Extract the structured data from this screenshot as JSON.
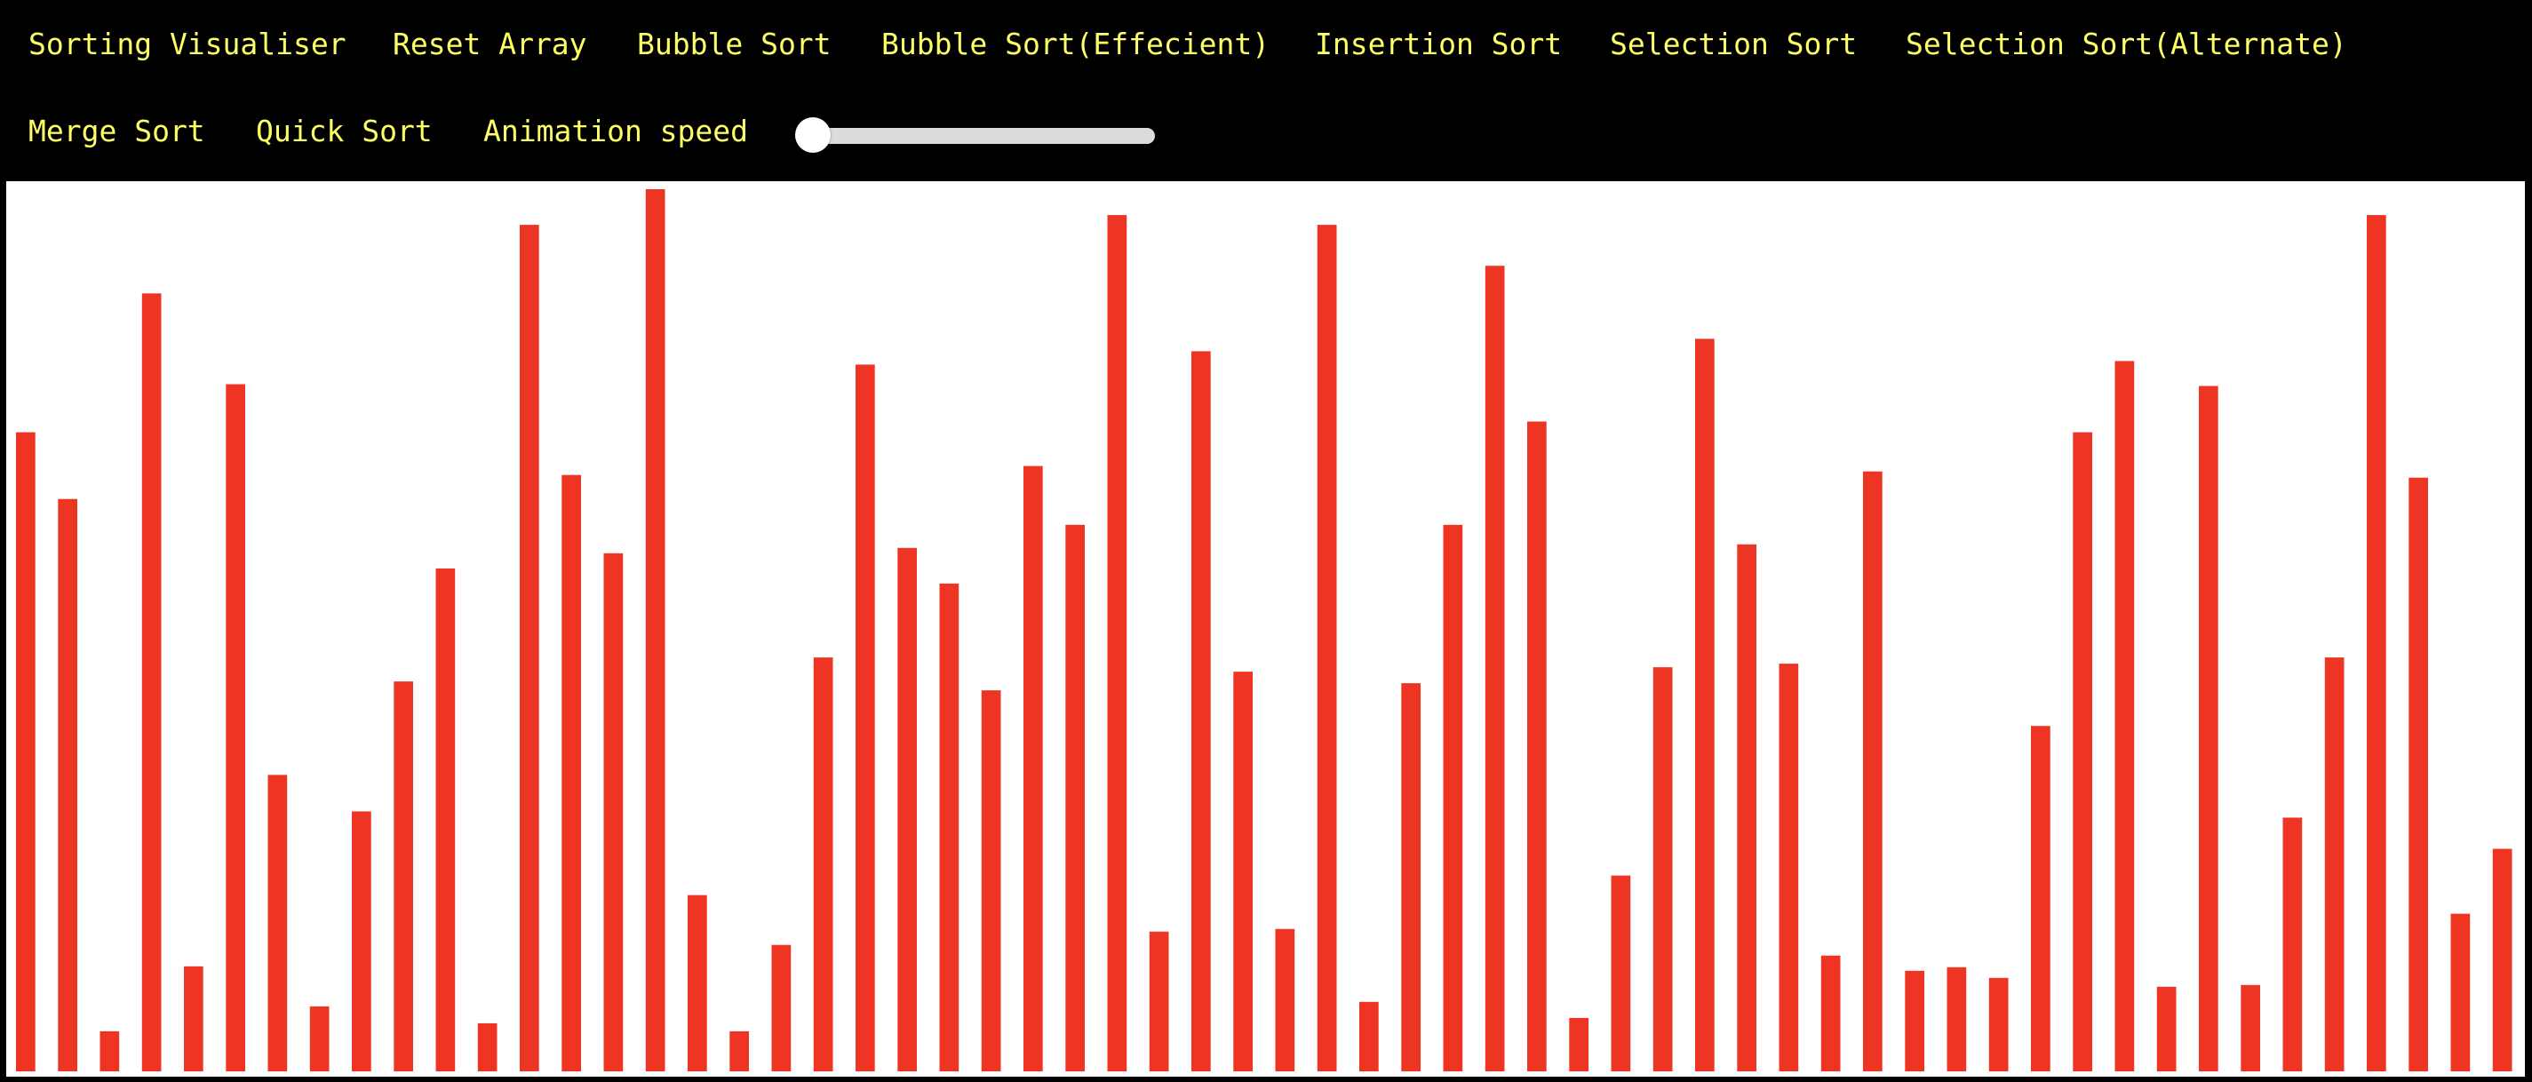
{
  "navbar": {
    "title": "Sorting Visualiser",
    "items": [
      {
        "id": "reset-array",
        "label": "Reset Array"
      },
      {
        "id": "bubble-sort",
        "label": "Bubble Sort"
      },
      {
        "id": "bubble-sort-efficient",
        "label": "Bubble Sort(Effecient)"
      },
      {
        "id": "insertion-sort",
        "label": "Insertion Sort"
      },
      {
        "id": "selection-sort",
        "label": "Selection Sort"
      },
      {
        "id": "selection-sort-alternate",
        "label": "Selection Sort(Alternate)"
      },
      {
        "id": "merge-sort",
        "label": "Merge Sort"
      },
      {
        "id": "quick-sort",
        "label": "Quick Sort"
      }
    ],
    "speed_label": "Animation speed"
  },
  "slider": {
    "value": 0.05
  },
  "colors": {
    "bar": "#ee3524",
    "nav_text": "#ffff66",
    "background": "#000000",
    "canvas": "#ffffff",
    "slider_fill": "#5b74e0",
    "slider_track": "#dcdcdc"
  },
  "array": [
    718,
    643,
    45,
    874,
    118,
    772,
    333,
    73,
    292,
    438,
    565,
    54,
    951,
    670,
    582,
    991,
    198,
    45,
    142,
    465,
    794,
    588,
    548,
    428,
    680,
    614,
    962,
    157,
    809,
    449,
    160,
    951,
    78,
    436,
    614,
    905,
    730,
    60,
    220,
    454,
    823,
    592,
    458,
    130,
    674,
    113,
    117,
    105,
    388,
    718,
    798,
    95,
    770,
    97,
    285,
    465,
    962,
    667,
    177,
    250
  ]
}
